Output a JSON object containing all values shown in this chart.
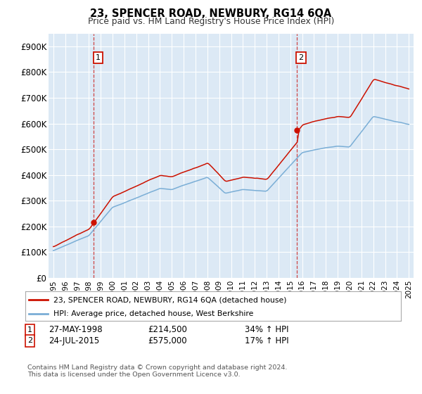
{
  "title": "23, SPENCER ROAD, NEWBURY, RG14 6QA",
  "subtitle": "Price paid vs. HM Land Registry's House Price Index (HPI)",
  "legend_line1": "23, SPENCER ROAD, NEWBURY, RG14 6QA (detached house)",
  "legend_line2": "HPI: Average price, detached house, West Berkshire",
  "ann1_x": 1998.42,
  "ann1_y": 214500,
  "ann2_x": 2015.55,
  "ann2_y": 575000,
  "footer": "Contains HM Land Registry data © Crown copyright and database right 2024.\nThis data is licensed under the Open Government Licence v3.0.",
  "row1_date": "27-MAY-1998",
  "row1_price": "£214,500",
  "row1_hpi": "34% ↑ HPI",
  "row2_date": "24-JUL-2015",
  "row2_price": "£575,000",
  "row2_hpi": "17% ↑ HPI",
  "hpi_color": "#7aaed6",
  "price_color": "#cc1100",
  "vline_color": "#cc3333",
  "box_color": "#cc1100",
  "background_color": "#dce9f5",
  "grid_color": "#ffffff",
  "ylim": [
    0,
    950000
  ],
  "yticks": [
    0,
    100000,
    200000,
    300000,
    400000,
    500000,
    600000,
    700000,
    800000,
    900000
  ],
  "ytick_labels": [
    "£0",
    "£100K",
    "£200K",
    "£300K",
    "£400K",
    "£500K",
    "£600K",
    "£700K",
    "£800K",
    "£900K"
  ],
  "xlim_start": 1994.6,
  "xlim_end": 2025.4,
  "xtick_years": [
    1995,
    1996,
    1997,
    1998,
    1999,
    2000,
    2001,
    2002,
    2003,
    2004,
    2005,
    2006,
    2007,
    2008,
    2009,
    2010,
    2011,
    2012,
    2013,
    2014,
    2015,
    2016,
    2017,
    2018,
    2019,
    2020,
    2021,
    2022,
    2023,
    2024,
    2025
  ]
}
